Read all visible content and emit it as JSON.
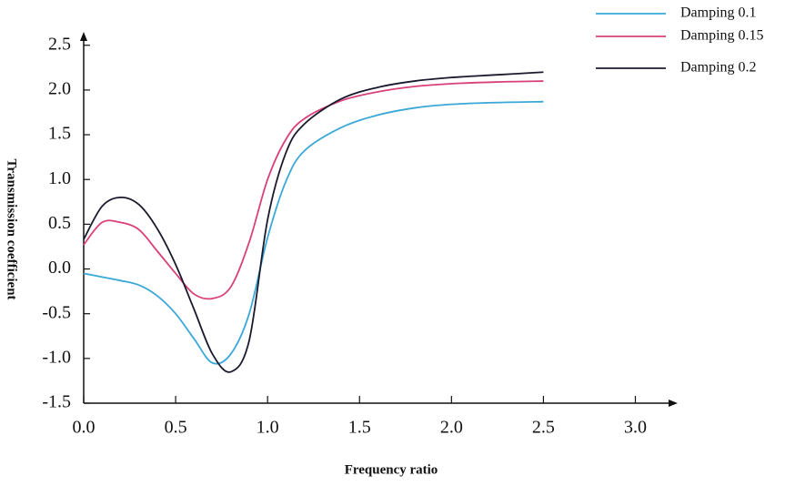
{
  "chart_data": {
    "type": "line",
    "x_label": "Frequency ratio",
    "y_label": "Transmission coefficient",
    "x": [
      0,
      0.1,
      0.2,
      0.3,
      0.4,
      0.5,
      0.6,
      0.7,
      0.8,
      0.9,
      1.0,
      1.1,
      1.2,
      1.4,
      1.6,
      1.8,
      2.0,
      2.25,
      2.5
    ],
    "series": [
      {
        "name": "Damping 0.1",
        "color": "#3aa8d8",
        "values": [
          -0.05,
          -0.09,
          -0.13,
          -0.18,
          -0.3,
          -0.5,
          -0.78,
          -1.05,
          -0.95,
          -0.5,
          0.35,
          0.98,
          1.32,
          1.58,
          1.72,
          1.8,
          1.84,
          1.86,
          1.87
        ]
      },
      {
        "name": "Damping 0.15",
        "color": "#d9407a",
        "values": [
          0.27,
          0.52,
          0.52,
          0.44,
          0.2,
          -0.05,
          -0.28,
          -0.33,
          -0.2,
          0.3,
          1.0,
          1.45,
          1.68,
          1.88,
          1.98,
          2.04,
          2.07,
          2.09,
          2.1
        ]
      },
      {
        "name": "Damping 0.2",
        "color": "#1a1a2e",
        "values": [
          0.33,
          0.7,
          0.8,
          0.72,
          0.45,
          0.05,
          -0.45,
          -0.95,
          -1.15,
          -0.8,
          0.55,
          1.3,
          1.62,
          1.9,
          2.03,
          2.1,
          2.14,
          2.17,
          2.2
        ]
      }
    ],
    "xlim": [
      0,
      3.23
    ],
    "ylim": [
      -1.5,
      2.65
    ],
    "xticks": [
      {
        "value": 0,
        "label": "0.0"
      },
      0.5,
      {
        "value": 1,
        "label": "1.0"
      },
      1.5,
      {
        "value": 2,
        "label": "2.0"
      },
      2.5,
      {
        "value": 3,
        "label": "3.0"
      }
    ],
    "yticks": [
      -1.5,
      {
        "value": -1,
        "label": "-1.0"
      },
      -0.5,
      {
        "value": 0,
        "label": "0.0"
      },
      0.5,
      {
        "value": 1,
        "label": "1.0"
      },
      1.5,
      {
        "value": 2,
        "label": "2.0"
      },
      2.5
    ],
    "grid": false,
    "legend": "upper right"
  }
}
